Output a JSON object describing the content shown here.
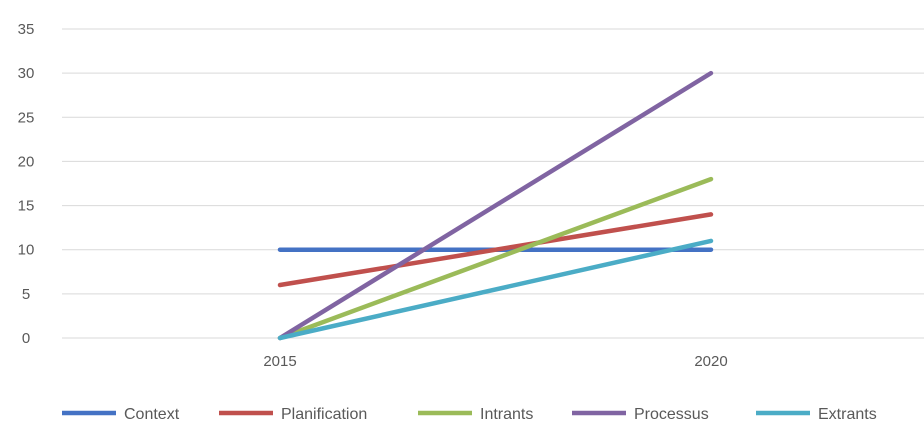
{
  "chart_data": {
    "type": "line",
    "title": "",
    "xlabel": "",
    "ylabel": "",
    "categories": [
      "2015",
      "2020"
    ],
    "ylim": [
      0,
      35
    ],
    "yticks": [
      0,
      5,
      10,
      15,
      20,
      25,
      30,
      35
    ],
    "grid": true,
    "legend_position": "bottom",
    "series": [
      {
        "name": "Context",
        "values": [
          10,
          10
        ],
        "color": "#4472C4"
      },
      {
        "name": "Planification",
        "values": [
          6,
          14
        ],
        "color": "#C0504D"
      },
      {
        "name": "Intrants",
        "values": [
          0,
          18
        ],
        "color": "#9BBB59"
      },
      {
        "name": "Processus",
        "values": [
          0,
          30
        ],
        "color": "#8064A2"
      },
      {
        "name": "Extrants",
        "values": [
          0,
          11
        ],
        "color": "#4BACC6"
      }
    ]
  }
}
